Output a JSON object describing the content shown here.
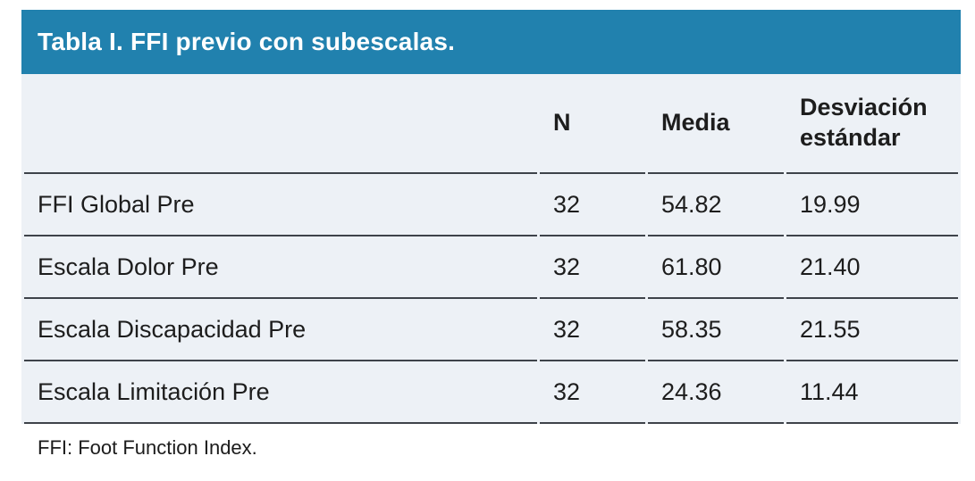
{
  "table": {
    "title": "Tabla I. FFI previo con subescalas.",
    "columns": {
      "label": "",
      "n": "N",
      "media": "Media",
      "sd": "Desviación estándar"
    },
    "rows": [
      {
        "label": "FFI Global Pre",
        "n": "32",
        "media": "54.82",
        "sd": "19.99"
      },
      {
        "label": "Escala Dolor Pre",
        "n": "32",
        "media": "61.80",
        "sd": "21.40"
      },
      {
        "label": "Escala Discapacidad Pre",
        "n": "32",
        "media": "58.35",
        "sd": "21.55"
      },
      {
        "label": "Escala Limitación Pre",
        "n": "32",
        "media": "24.36",
        "sd": "11.44"
      }
    ],
    "footnote": "FFI: Foot Function Index."
  },
  "colors": {
    "title_bar_bg": "#2181ae",
    "title_text": "#ffffff",
    "table_bg": "#edf1f6",
    "rule": "#3e434a",
    "body_text": "#1d1d1d"
  },
  "chart_data": {
    "type": "table",
    "title": "Tabla I. FFI previo con subescalas.",
    "columns": [
      "",
      "N",
      "Media",
      "Desviación estándar"
    ],
    "rows": [
      [
        "FFI Global Pre",
        32,
        54.82,
        19.99
      ],
      [
        "Escala Dolor Pre",
        32,
        61.8,
        21.4
      ],
      [
        "Escala Discapacidad Pre",
        32,
        58.35,
        21.55
      ],
      [
        "Escala Limitación Pre",
        32,
        24.36,
        11.44
      ]
    ],
    "footnote": "FFI: Foot Function Index."
  }
}
